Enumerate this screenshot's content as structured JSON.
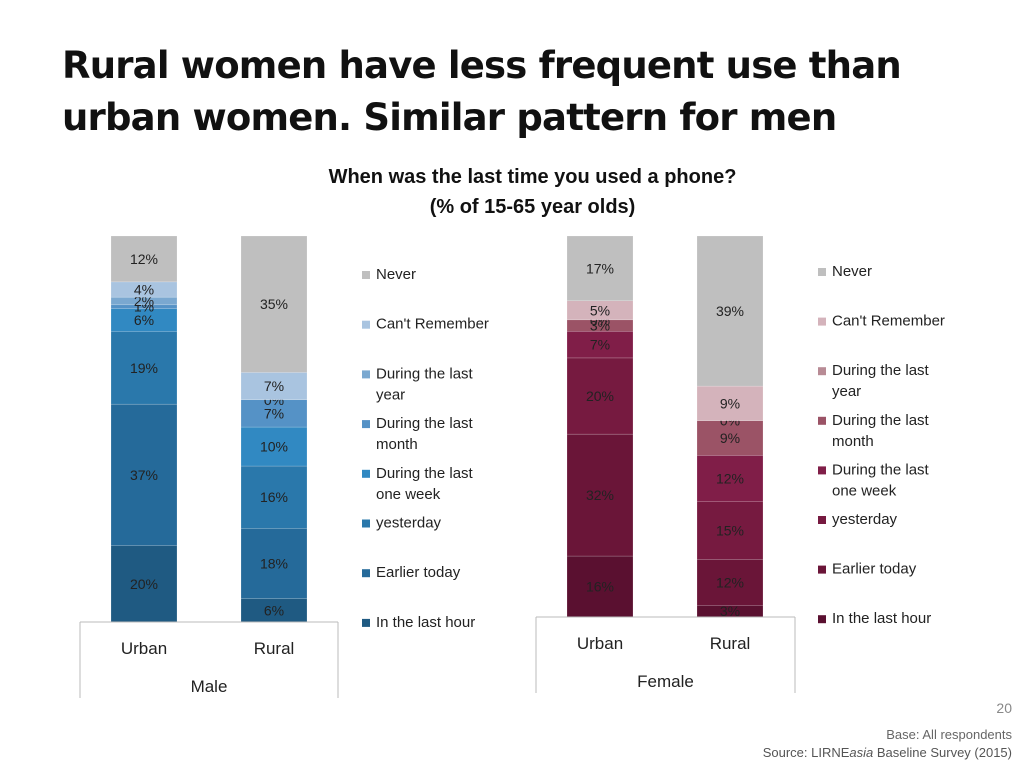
{
  "slide": {
    "title_line1": "Rural women have less frequent use than",
    "title_line2": "urban women.  Similar pattern for men",
    "page_number": "20",
    "base_note": "Base: All respondents",
    "source_prefix": "Source: LIRNE",
    "source_italic": "asia",
    "source_suffix": " Baseline Survey (2015)"
  },
  "chart_data": [
    {
      "type": "bar",
      "stacked": true,
      "title": "When was the last time you used a phone?",
      "subtitle": "(% of 15-65 year olds)",
      "group_label": "Male",
      "categories": [
        "Urban",
        "Rural"
      ],
      "ylim": [
        0,
        100
      ],
      "legend_position": "right",
      "series": [
        {
          "name": "In the last hour",
          "values": [
            20,
            6
          ],
          "labels": [
            "20%",
            "6%"
          ],
          "color": "#1f5a82"
        },
        {
          "name": "Earlier today",
          "values": [
            37,
            18
          ],
          "labels": [
            "37%",
            "18%"
          ],
          "color": "#256a9a"
        },
        {
          "name": "yesterday",
          "values": [
            19,
            16
          ],
          "labels": [
            "19%",
            "16%"
          ],
          "color": "#2a78ab"
        },
        {
          "name": "During the last one week",
          "values": [
            6,
            10
          ],
          "labels": [
            "6%",
            "10%"
          ],
          "color": "#3189c2"
        },
        {
          "name": "During the last month",
          "values": [
            1,
            7
          ],
          "labels": [
            "1%",
            "7%"
          ],
          "color": "#5592c6"
        },
        {
          "name": "During the last year",
          "values": [
            2,
            0
          ],
          "labels": [
            "2%",
            "0%"
          ],
          "color": "#7aa8d0"
        },
        {
          "name": "Can't Remember",
          "values": [
            4,
            7
          ],
          "labels": [
            "4%",
            "7%"
          ],
          "color": "#a9c4e0"
        },
        {
          "name": "Never",
          "values": [
            12,
            35
          ],
          "labels": [
            "12%",
            "35%"
          ],
          "color": "#bfbfbf"
        }
      ]
    },
    {
      "type": "bar",
      "stacked": true,
      "group_label": "Female",
      "categories": [
        "Urban",
        "Rural"
      ],
      "ylim": [
        0,
        100
      ],
      "legend_position": "right",
      "series": [
        {
          "name": "In the last hour",
          "values": [
            16,
            3
          ],
          "labels": [
            "16%",
            "3%"
          ],
          "color": "#5a1030"
        },
        {
          "name": "Earlier today",
          "values": [
            32,
            12
          ],
          "labels": [
            "32%",
            "12%"
          ],
          "color": "#6a1538"
        },
        {
          "name": "yesterday",
          "values": [
            20,
            15
          ],
          "labels": [
            "20%",
            "15%"
          ],
          "color": "#761a40"
        },
        {
          "name": "During the last one week",
          "values": [
            7,
            12
          ],
          "labels": [
            "7%",
            "12%"
          ],
          "color": "#801e48"
        },
        {
          "name": "During the last month",
          "values": [
            3,
            9
          ],
          "labels": [
            "3%",
            "9%"
          ],
          "color": "#9b5366"
        },
        {
          "name": "During the last year",
          "values": [
            0,
            0
          ],
          "labels": [
            "0%",
            "0%"
          ],
          "color": "#b88b95"
        },
        {
          "name": "Can't Remember",
          "values": [
            5,
            9
          ],
          "labels": [
            "5%",
            "9%"
          ],
          "color": "#d4b3bb"
        },
        {
          "name": "Never",
          "values": [
            17,
            39
          ],
          "labels": [
            "17%",
            "39%"
          ],
          "color": "#bfbfbf"
        }
      ]
    }
  ]
}
